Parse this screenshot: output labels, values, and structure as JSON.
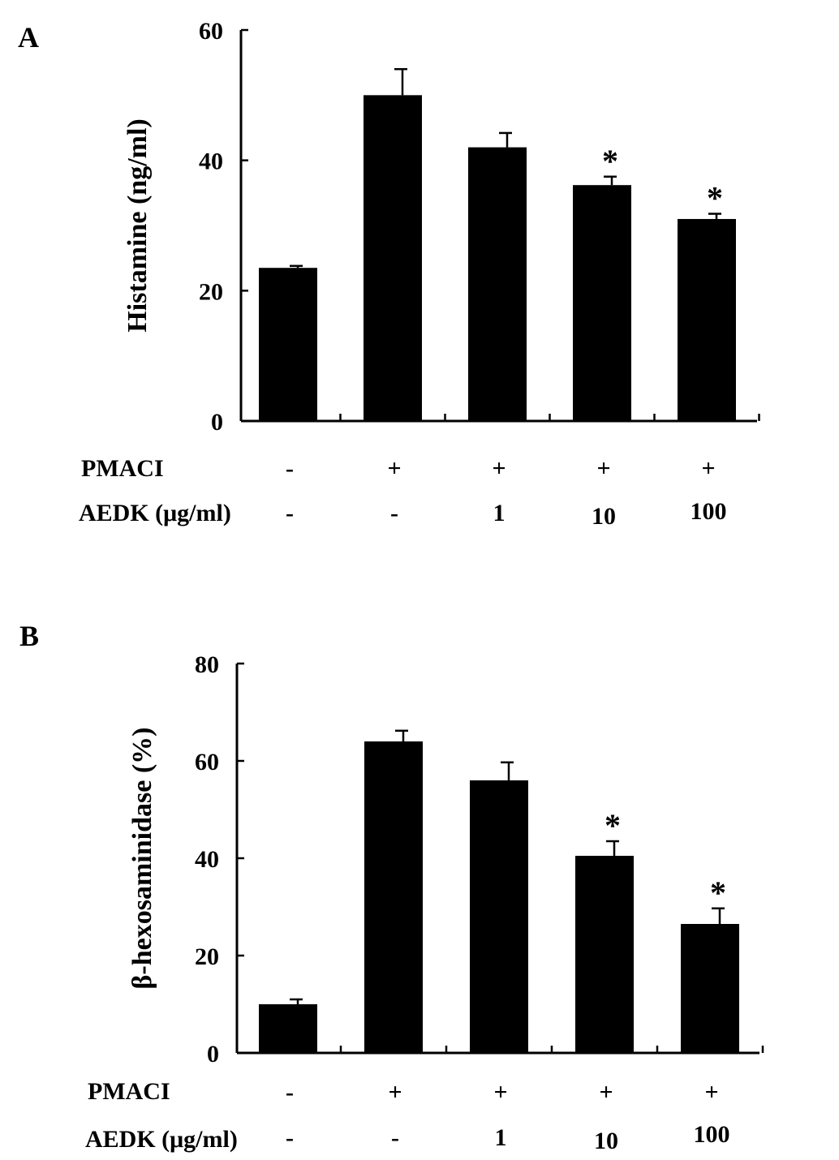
{
  "chart_data": [
    {
      "panel_label": "A",
      "type": "bar",
      "categories": [
        "1",
        "2",
        "3",
        "4",
        "5"
      ],
      "values": [
        23.5,
        50,
        42,
        36.2,
        31
      ],
      "errors": [
        0.3,
        4,
        2.2,
        1.3,
        0.8
      ],
      "significant": [
        false,
        false,
        false,
        true,
        true
      ],
      "significance_marker": "*",
      "ylabel": "Histamine (ng/ml)",
      "ylim": [
        0,
        60
      ],
      "yticks": [
        "0",
        "20",
        "40",
        "60"
      ],
      "rows": [
        {
          "label": "PMACI",
          "values": [
            "-",
            "+",
            "+",
            "+",
            "+"
          ]
        },
        {
          "label": "AEDK (μg/ml)",
          "values": [
            "-",
            "-",
            "1",
            "10",
            "100"
          ]
        }
      ],
      "bar_color": "#000000"
    },
    {
      "panel_label": "B",
      "type": "bar",
      "categories": [
        "1",
        "2",
        "3",
        "4",
        "5"
      ],
      "values": [
        10,
        64,
        56,
        40.5,
        26.5
      ],
      "errors": [
        1,
        2.2,
        3.7,
        3,
        3.2
      ],
      "significant": [
        false,
        false,
        false,
        true,
        true
      ],
      "significance_marker": "*",
      "ylabel": "β-hexosaminidase (%)",
      "ylim": [
        0,
        80
      ],
      "yticks": [
        "0",
        "20",
        "40",
        "60",
        "80"
      ],
      "rows": [
        {
          "label": "PMACI",
          "values": [
            "-",
            "+",
            "+",
            "+",
            "+"
          ]
        },
        {
          "label": "AEDK (μg/ml)",
          "values": [
            "-",
            "-",
            "1",
            "10",
            "100"
          ]
        }
      ],
      "bar_color": "#000000"
    }
  ]
}
